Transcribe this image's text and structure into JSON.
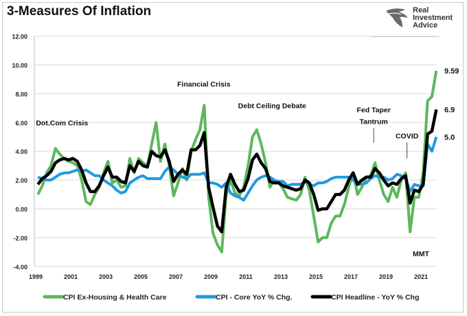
{
  "logo": {
    "text": "Real Investment Advice",
    "lines": [
      "Real",
      "Investment",
      "Advice"
    ]
  },
  "chart_data": {
    "type": "line",
    "title": "3-Measures Of Inflation",
    "xlabel": "",
    "ylabel": "",
    "ylim": [
      -4,
      12
    ],
    "xlim": [
      1999,
      2021.9
    ],
    "yticks": [
      "12.00",
      "10.00",
      "8.00",
      "6.00",
      "4.00",
      "2.00",
      "0.00",
      "-2.00",
      "-4.00"
    ],
    "ytick_values": [
      12,
      10,
      8,
      6,
      4,
      2,
      0,
      -2,
      -4
    ],
    "xticks": [
      "1999",
      "2001",
      "2003",
      "2005",
      "2007",
      "2009",
      "2011",
      "2013",
      "2015",
      "2017",
      "2019",
      "2021"
    ],
    "grid": "horizontal",
    "legend_position": "bottom",
    "x_start": 1999.0,
    "x_step": 0.25,
    "series": [
      {
        "name": "CPI Ex-Housing & Health Care",
        "color": "#5cb85c",
        "values": [
          1.0,
          1.6,
          2.5,
          3.0,
          4.2,
          3.8,
          3.5,
          3.3,
          3.2,
          3.0,
          2.0,
          0.5,
          0.3,
          1.0,
          1.5,
          2.5,
          3.3,
          1.8,
          2.0,
          1.5,
          1.6,
          3.5,
          2.5,
          3.5,
          3.2,
          3.0,
          4.5,
          6.0,
          3.3,
          4.5,
          3.0,
          0.9,
          1.8,
          2.8,
          2.0,
          4.0,
          4.8,
          5.5,
          7.2,
          0.8,
          -1.7,
          -2.5,
          -3.0,
          1.0,
          2.0,
          1.1,
          0.9,
          1.5,
          3.0,
          5.0,
          5.5,
          4.5,
          3.2,
          1.5,
          2.0,
          1.8,
          1.4,
          0.8,
          0.7,
          0.6,
          1.0,
          2.2,
          1.3,
          -0.5,
          -2.3,
          -2.0,
          -2.0,
          -1.0,
          -0.5,
          -0.5,
          0.3,
          1.5,
          2.5,
          1.0,
          1.5,
          2.2,
          2.3,
          3.2,
          2.0,
          1.0,
          0.5,
          1.5,
          0.8,
          2.0,
          2.5,
          -1.6,
          0.8,
          0.8,
          2.5,
          7.5,
          7.8,
          9.59
        ]
      },
      {
        "name": "CPI - Core YoY % Chg.",
        "color": "#1e9be0",
        "values": [
          2.2,
          2.1,
          2.0,
          2.0,
          2.2,
          2.4,
          2.5,
          2.5,
          2.6,
          2.7,
          2.6,
          2.7,
          2.5,
          2.3,
          2.3,
          2.0,
          1.8,
          1.6,
          1.3,
          1.1,
          1.2,
          1.8,
          2.0,
          2.2,
          2.3,
          2.1,
          2.1,
          2.1,
          2.1,
          2.6,
          2.9,
          2.7,
          2.4,
          2.2,
          2.1,
          2.4,
          2.4,
          2.4,
          2.5,
          1.8,
          1.8,
          1.7,
          1.5,
          1.8,
          1.1,
          0.9,
          0.8,
          0.6,
          1.1,
          1.6,
          2.0,
          2.2,
          2.3,
          2.2,
          2.0,
          1.9,
          1.9,
          1.6,
          1.7,
          1.7,
          1.7,
          1.9,
          1.7,
          1.6,
          1.8,
          1.8,
          1.9,
          2.1,
          2.2,
          2.2,
          2.2,
          2.2,
          2.0,
          1.7,
          1.7,
          1.8,
          2.1,
          2.3,
          2.2,
          2.2,
          2.0,
          2.1,
          2.4,
          2.3,
          2.1,
          1.2,
          1.7,
          1.6,
          1.6,
          4.5,
          4.0,
          5.0
        ]
      },
      {
        "name": "CPI Headline - YoY % Chg",
        "color": "#000000",
        "values": [
          1.7,
          2.1,
          2.3,
          2.6,
          3.2,
          3.4,
          3.5,
          3.4,
          3.5,
          3.3,
          2.7,
          1.8,
          1.2,
          1.2,
          1.6,
          2.3,
          2.9,
          2.2,
          2.2,
          1.9,
          1.8,
          3.0,
          2.6,
          3.3,
          3.0,
          2.9,
          4.0,
          3.7,
          3.6,
          4.1,
          3.3,
          1.9,
          2.4,
          2.7,
          2.4,
          4.1,
          4.1,
          4.4,
          5.3,
          1.5,
          0.1,
          -1.2,
          -1.6,
          1.5,
          2.4,
          1.7,
          1.2,
          1.3,
          2.1,
          3.4,
          3.8,
          3.2,
          2.8,
          1.9,
          1.8,
          1.8,
          1.6,
          1.5,
          1.4,
          1.3,
          1.4,
          2.0,
          1.8,
          1.0,
          -0.1,
          0.0,
          0.0,
          0.5,
          1.0,
          1.0,
          1.3,
          2.0,
          2.5,
          1.7,
          2.0,
          2.2,
          2.2,
          2.8,
          2.5,
          2.0,
          1.6,
          1.8,
          1.7,
          2.1,
          2.3,
          0.4,
          1.3,
          1.2,
          1.7,
          5.2,
          5.4,
          6.9
        ]
      }
    ],
    "end_labels": [
      "9.59",
      "6.9",
      "5.0"
    ],
    "annotations": [
      {
        "text": "Dot.Com Crisis",
        "x": 2000.5,
        "y": 5.8
      },
      {
        "text": "Financial Crisis",
        "x": 2008.6,
        "y": 8.5
      },
      {
        "text": "Debt Ceiling Debate",
        "x": 2012.5,
        "y": 7.0
      },
      {
        "text": "Fed Taper",
        "x": 2018.3,
        "y": 6.7
      },
      {
        "text": "Tantrum",
        "x": 2018.3,
        "y": 5.9
      },
      {
        "text": "COVID",
        "x": 2020.2,
        "y": 4.9
      },
      {
        "text": "MMT",
        "x": 2021.0,
        "y": -3.3
      }
    ]
  }
}
